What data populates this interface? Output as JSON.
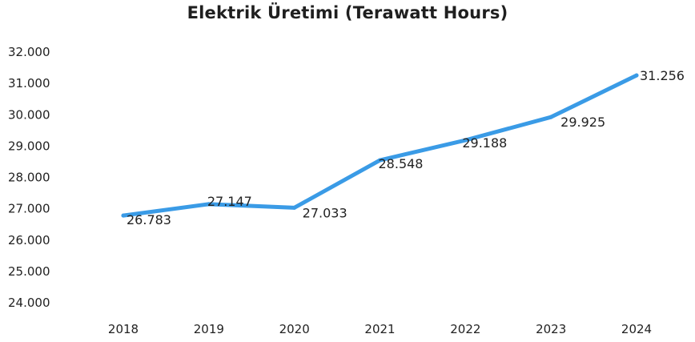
{
  "chart_data": {
    "type": "line",
    "title": "Elektrik Üretimi (Terawatt Hours)",
    "xlabel": "",
    "ylabel": "",
    "x": [
      "2018",
      "2019",
      "2020",
      "2021",
      "2022",
      "2023",
      "2024"
    ],
    "series": [
      {
        "values": [
          26783,
          27147,
          27033,
          28548,
          29188,
          29925,
          31256
        ],
        "labels": [
          "26.783",
          "27.147",
          "27.033",
          "28.548",
          "29.188",
          "29.925",
          "31.256"
        ]
      }
    ],
    "ylim": [
      24000,
      32000
    ],
    "yticks": [
      "24.000",
      "25.000",
      "26.000",
      "27.000",
      "28.000",
      "29.000",
      "30.000",
      "31.000",
      "32.000"
    ],
    "grid": false,
    "line_color": "#3a9be6",
    "label_color": "#222222"
  }
}
